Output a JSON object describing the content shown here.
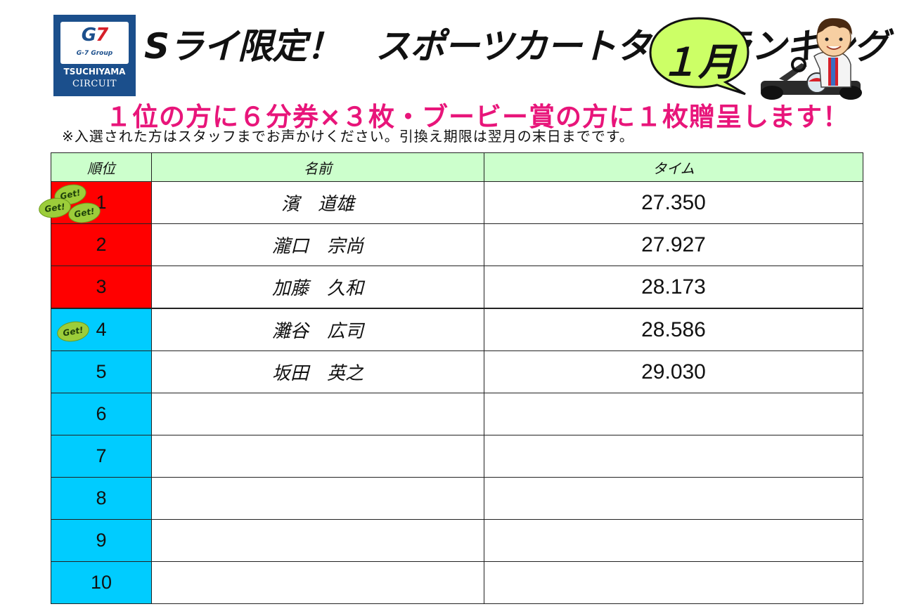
{
  "logo": {
    "mark_g": "G",
    "mark_7": "7",
    "group": "G-7 Group",
    "name_line1": "TSUCHIYAMA",
    "name_line2": "CIRCUIT"
  },
  "title": "Sライ限定！　スポーツカートタイムランキング",
  "month": "１月",
  "promo": "１位の方に６分券×３枚・ブービー賞の方に１枚贈呈します！",
  "note": "※入選された方はスタッフまでお声かけください。引換え期限は翌月の末日までです。",
  "table": {
    "headers": {
      "rank": "順位",
      "name": "名前",
      "time": "タイム"
    },
    "badge_label": "Get!",
    "rows": [
      {
        "rank": "1",
        "name": "濱　道雄",
        "time": "27.350",
        "color": "red"
      },
      {
        "rank": "2",
        "name": "瀧口　宗尚",
        "time": "27.927",
        "color": "red"
      },
      {
        "rank": "3",
        "name": "加藤　久和",
        "time": "28.173",
        "color": "red"
      },
      {
        "rank": "4",
        "name": "灘谷　広司",
        "time": "28.586",
        "color": "blue"
      },
      {
        "rank": "5",
        "name": "坂田　英之",
        "time": "29.030",
        "color": "blue"
      },
      {
        "rank": "6",
        "name": "",
        "time": "",
        "color": "blue"
      },
      {
        "rank": "7",
        "name": "",
        "time": "",
        "color": "blue"
      },
      {
        "rank": "8",
        "name": "",
        "time": "",
        "color": "blue"
      },
      {
        "rank": "9",
        "name": "",
        "time": "",
        "color": "blue"
      },
      {
        "rank": "10",
        "name": "",
        "time": "",
        "color": "blue"
      }
    ]
  },
  "colors": {
    "top3": "#ff0000",
    "others": "#00ccff",
    "header_bg": "#ccffcc",
    "promo": "#e8157a",
    "month_bubble": "#ccff66"
  }
}
